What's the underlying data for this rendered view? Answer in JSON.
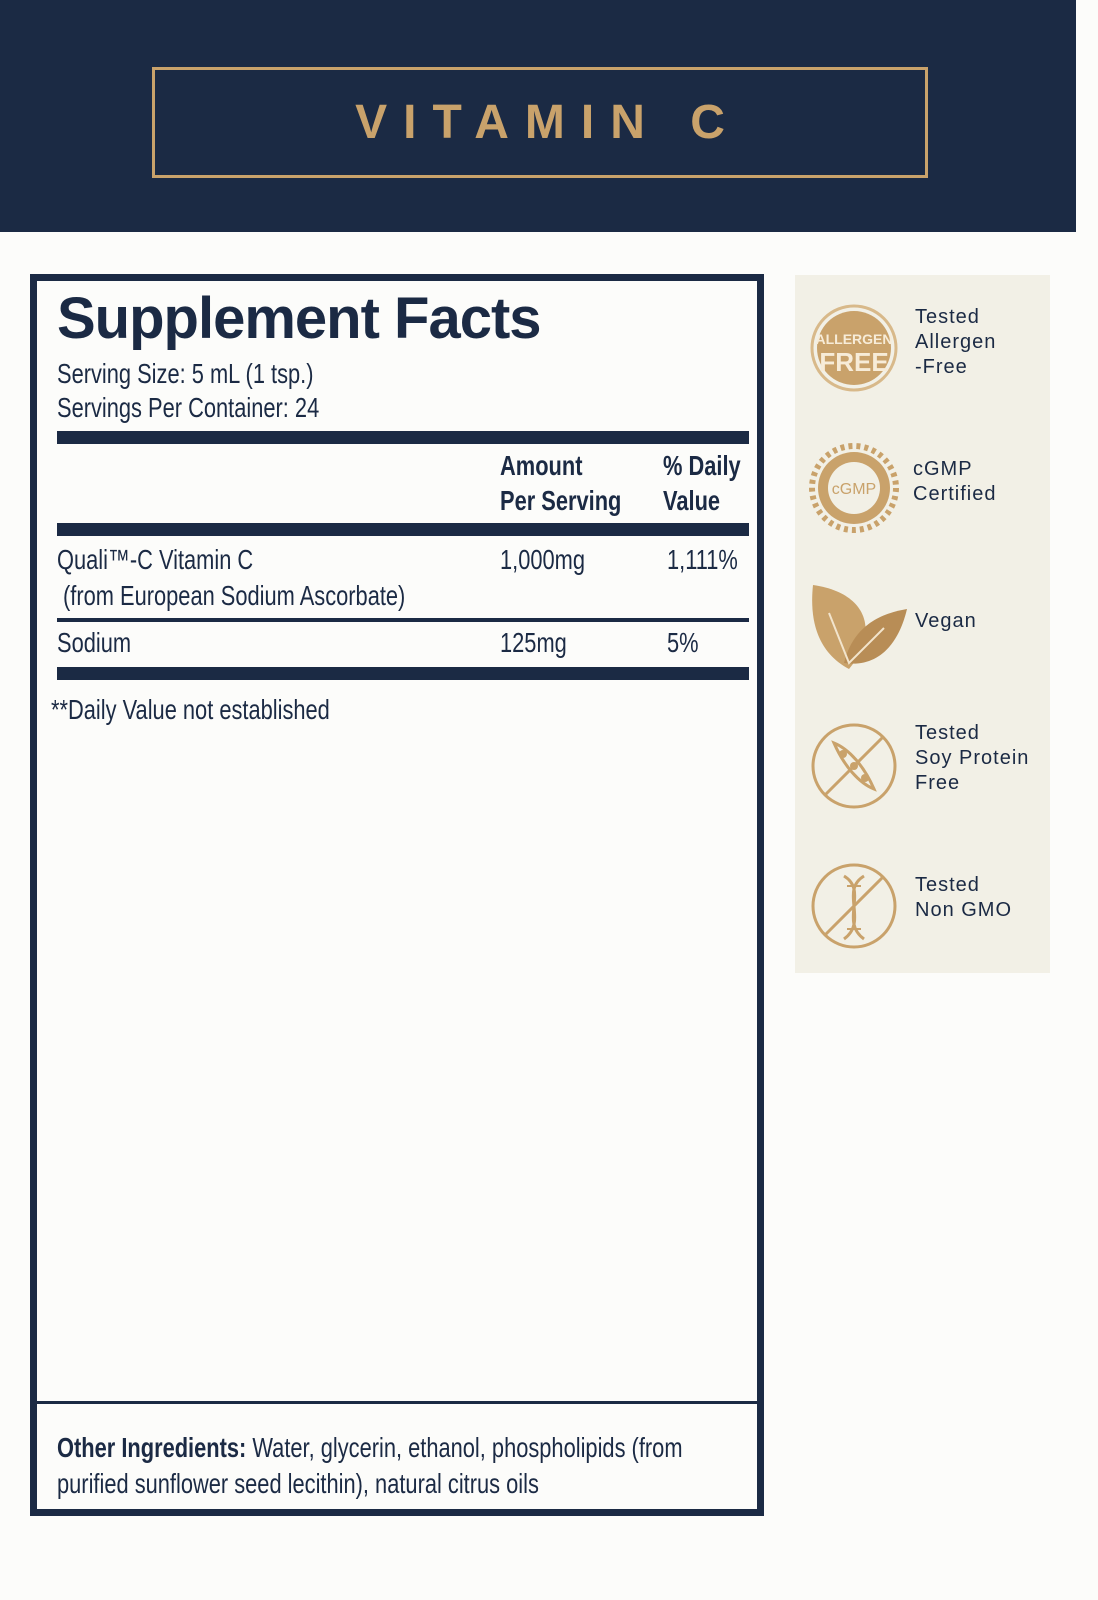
{
  "header": {
    "title": "VITAMIN C"
  },
  "facts": {
    "title": "Supplement Facts",
    "serving_size": "Serving Size: 5 mL (1 tsp.)",
    "servings_per_container": "Servings Per Container: 24",
    "columns": {
      "amount_line1": "Amount",
      "amount_line2": "Per Serving",
      "dv_line1": "% Daily",
      "dv_line2": "Value"
    },
    "rows": [
      {
        "name": "Quali™-C Vitamin C",
        "sub": "(from European Sodium Ascorbate)",
        "amount": "1,000mg",
        "dv": "1,111%"
      },
      {
        "name": "Sodium",
        "amount": "125mg",
        "dv": "5%"
      }
    ],
    "footnote": "**Daily Value not established",
    "other_label": "Other Ingredients:",
    "other_line1": " Water, glycerin, ethanol, phospholipids (from",
    "other_line2": "purified sunflower seed lecithin), natural citrus oils"
  },
  "badges": [
    {
      "icon": "allergen-free-icon",
      "lines": [
        "Tested",
        "Allergen",
        "-Free"
      ],
      "emblem": [
        "ALLERGEN",
        "FREE"
      ]
    },
    {
      "icon": "cgmp-icon",
      "lines": [
        "cGMP",
        "Certified"
      ],
      "emblem": [
        "cGMP"
      ]
    },
    {
      "icon": "vegan-leaf-icon",
      "lines": [
        "Vegan"
      ]
    },
    {
      "icon": "soy-free-icon",
      "lines": [
        "Tested",
        "Soy Protein",
        "Free"
      ]
    },
    {
      "icon": "non-gmo-icon",
      "lines": [
        "Tested",
        "Non GMO"
      ]
    }
  ],
  "colors": {
    "navy": "#1b2a44",
    "gold": "#c9a26b",
    "badge_bg": "#f2f0e6"
  }
}
